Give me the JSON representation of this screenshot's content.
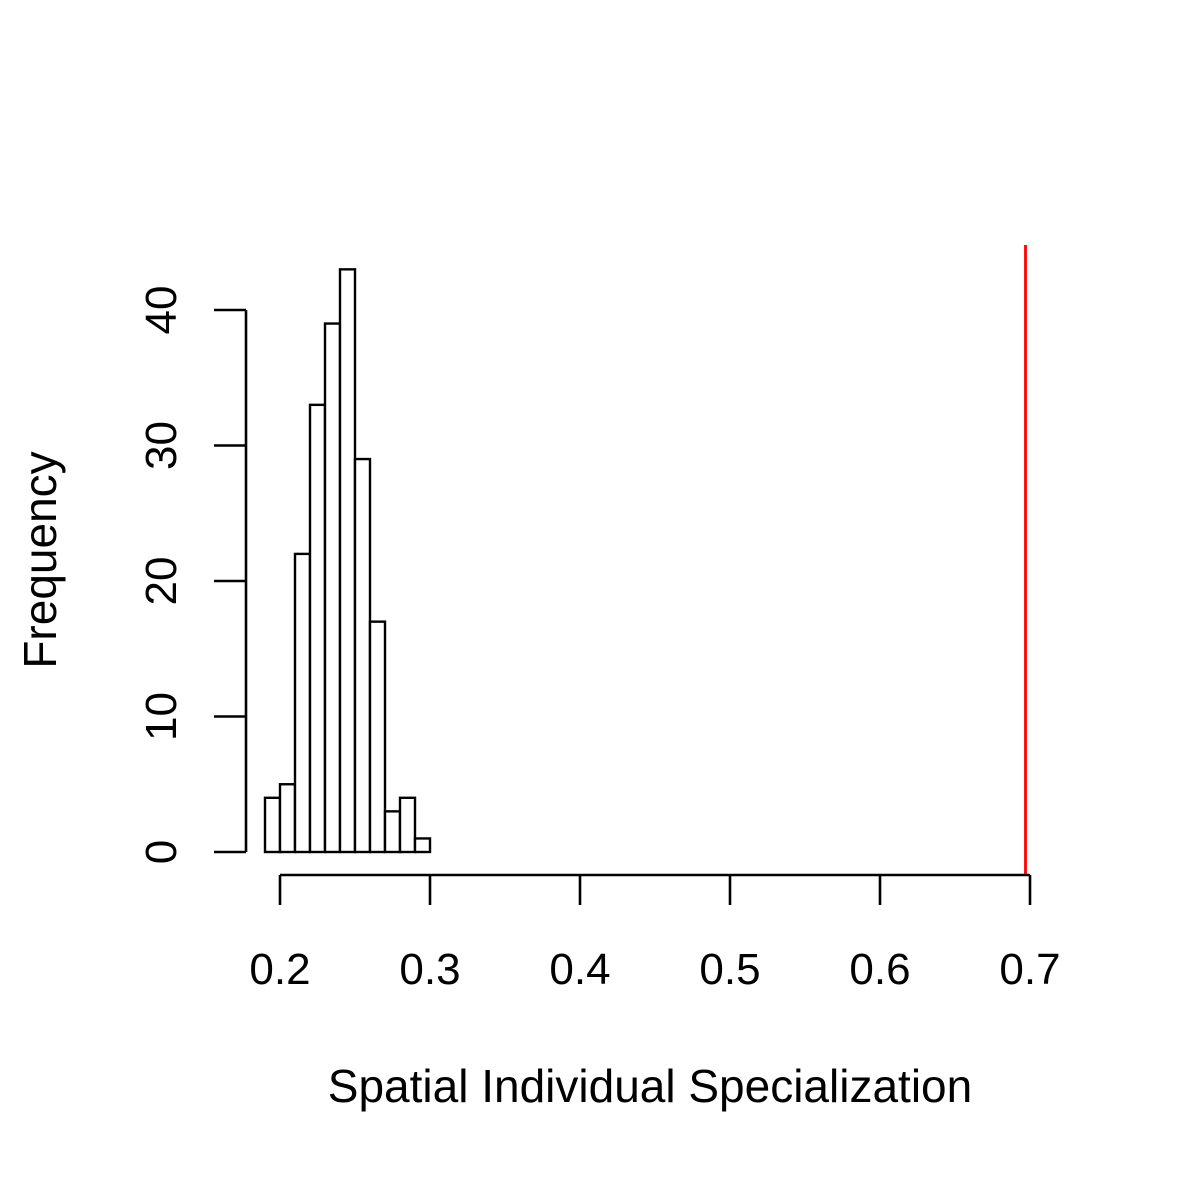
{
  "chart_data": {
    "type": "histogram",
    "xlabel": "Spatial Individual Specialization",
    "ylabel": "Frequency",
    "bins": [
      {
        "x0": 0.19,
        "x1": 0.2,
        "count": 4
      },
      {
        "x0": 0.2,
        "x1": 0.21,
        "count": 5
      },
      {
        "x0": 0.21,
        "x1": 0.22,
        "count": 22
      },
      {
        "x0": 0.22,
        "x1": 0.23,
        "count": 33
      },
      {
        "x0": 0.23,
        "x1": 0.24,
        "count": 39
      },
      {
        "x0": 0.24,
        "x1": 0.25,
        "count": 43
      },
      {
        "x0": 0.25,
        "x1": 0.26,
        "count": 29
      },
      {
        "x0": 0.26,
        "x1": 0.27,
        "count": 17
      },
      {
        "x0": 0.27,
        "x1": 0.28,
        "count": 3
      },
      {
        "x0": 0.28,
        "x1": 0.29,
        "count": 4
      },
      {
        "x0": 0.29,
        "x1": 0.3,
        "count": 1
      }
    ],
    "x_ticks": [
      "0.2",
      "0.3",
      "0.4",
      "0.5",
      "0.6",
      "0.7"
    ],
    "y_ticks": [
      "0",
      "10",
      "20",
      "30",
      "40"
    ],
    "xlim": [
      0.2,
      0.7
    ],
    "ylim": [
      0,
      40
    ],
    "reference_line": {
      "x": 0.697,
      "color": "#ff0000"
    },
    "bar_fill": "#ffffff",
    "bar_edge": "#000000",
    "grid": false,
    "legend": "none"
  }
}
